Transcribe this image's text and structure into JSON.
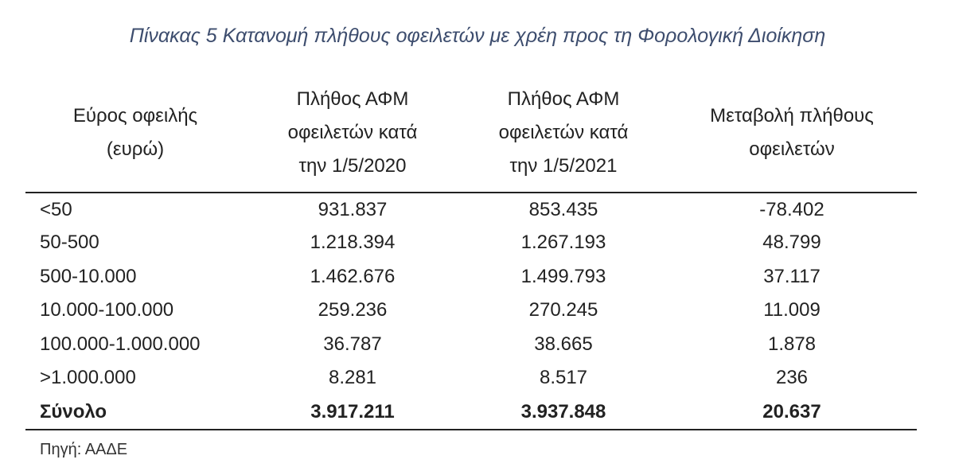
{
  "title": "Πίνακας 5 Κατανομή πλήθους οφειλετών με χρέη προς τη Φορολογική Διοίκηση",
  "table": {
    "header": [
      [
        "Εύρος οφειλής",
        "(ευρώ)"
      ],
      [
        "Πλήθος ΑΦΜ",
        "οφειλετών κατά",
        "την 1/5/2020"
      ],
      [
        "Πλήθος ΑΦΜ",
        "οφειλετών κατά",
        "την 1/5/2021"
      ],
      [
        "Μεταβολή πλήθους",
        "οφειλετών"
      ]
    ],
    "rows": [
      [
        "<50",
        "931.837",
        "853.435",
        "-78.402"
      ],
      [
        "50-500",
        "1.218.394",
        "1.267.193",
        "48.799"
      ],
      [
        "500-10.000",
        "1.462.676",
        "1.499.793",
        "37.117"
      ],
      [
        "10.000-100.000",
        "259.236",
        "270.245",
        "11.009"
      ],
      [
        "100.000-1.000.000",
        "36.787",
        "38.665",
        "1.878"
      ],
      [
        ">1.000.000",
        "8.281",
        "8.517",
        "236"
      ]
    ],
    "total": [
      "Σύνολο",
      "3.917.211",
      "3.937.848",
      "20.637"
    ]
  },
  "source": "Πηγή: ΑΑΔΕ"
}
